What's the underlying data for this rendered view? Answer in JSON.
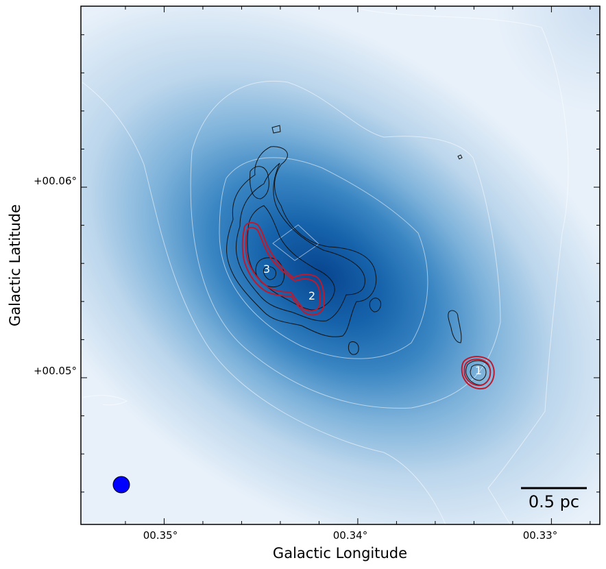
{
  "chart_data": {
    "type": "heatmap",
    "title": "",
    "xlabel": "Galactic Longitude",
    "ylabel": "Galactic Latitude",
    "x_axis": {
      "unit": "deg",
      "direction": "decreasing to the right",
      "range": [
        0.3543,
        0.3275
      ],
      "ticks": [
        0.35,
        0.34,
        0.33
      ],
      "tick_labels": [
        "00.35°",
        "00.34°",
        "00.33°"
      ]
    },
    "y_axis": {
      "unit": "deg",
      "range": [
        0.0423,
        0.0695
      ],
      "ticks": [
        0.05,
        0.06
      ],
      "tick_labels": [
        "+00.05°",
        "+00.06°"
      ]
    },
    "background_colormap": "Blues",
    "colors": {
      "peak": "#08458f",
      "mid": "#4a92c9",
      "low": "#eaf2fb",
      "black_contours": "#111111",
      "red_contours": "#c0182c",
      "beam": "#0000ff",
      "white_contours": "#ffffff"
    },
    "sources": [
      {
        "label": "1",
        "l": 0.3329,
        "b": 0.05
      },
      {
        "label": "2",
        "l": 0.3421,
        "b": 0.0539
      },
      {
        "label": "3",
        "l": 0.3443,
        "b": 0.0553
      }
    ],
    "scalebar": {
      "label": "0.5 pc"
    },
    "beam": {
      "shape": "circle",
      "position": "bottom-left"
    },
    "grid": false
  }
}
